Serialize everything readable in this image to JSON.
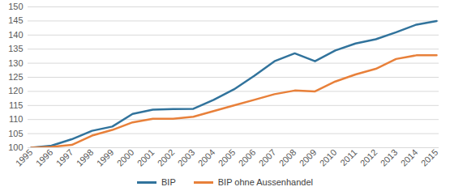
{
  "chart_data": {
    "type": "line",
    "categories": [
      "1995",
      "1996",
      "1997",
      "1998",
      "1999",
      "2000",
      "2001",
      "2002",
      "2003",
      "2004",
      "2005",
      "2006",
      "2007",
      "2008",
      "2009",
      "2010",
      "2011",
      "2012",
      "2013",
      "2014",
      "2015"
    ],
    "series": [
      {
        "name": "BIP",
        "color": "#31739c",
        "values": [
          100,
          100.7,
          103,
          106,
          107.5,
          112,
          113.5,
          113.7,
          113.8,
          117,
          120.7,
          125.5,
          130.7,
          133.5,
          130.7,
          134.5,
          137,
          138.5,
          141,
          143.7,
          145
        ]
      },
      {
        "name": "BIP ohne Aussenhandel",
        "color": "#e8803a",
        "values": [
          100,
          100.3,
          101,
          104.3,
          106.3,
          109,
          110.3,
          110.3,
          111,
          113,
          115,
          117,
          119,
          120.3,
          120,
          123.5,
          126,
          128,
          131.5,
          132.8,
          132.8
        ]
      }
    ],
    "ylim": [
      100,
      150
    ],
    "yticks": [
      100,
      105,
      110,
      115,
      120,
      125,
      130,
      135,
      140,
      145,
      150
    ],
    "grid": true,
    "legend": "bottom"
  }
}
